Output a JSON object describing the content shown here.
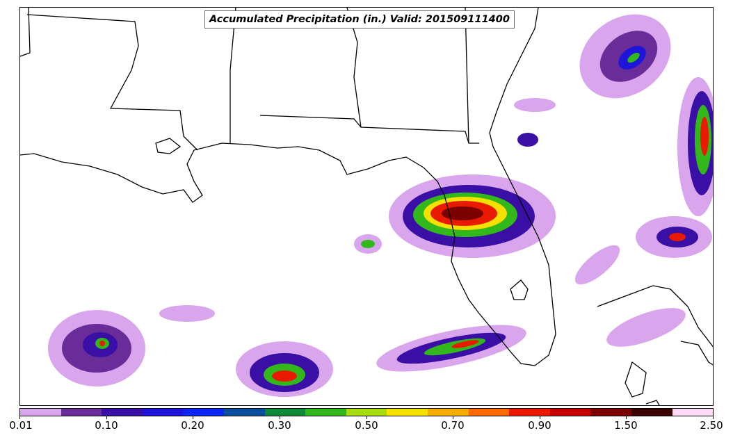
{
  "title": "Accumulated Precipitation (in.) Valid: 201509111400",
  "colorbar": {
    "colors": [
      "#d9a5ec",
      "#6a2c99",
      "#3a0fa6",
      "#1f14d9",
      "#0a26f0",
      "#0a4f9e",
      "#0c8a3a",
      "#33b81c",
      "#a8dc12",
      "#f5e000",
      "#f7ac00",
      "#ff6a00",
      "#ea1a00",
      "#c40000",
      "#7d0000",
      "#3a0000",
      "#ffd9f5"
    ],
    "ticks": [
      {
        "label": "0.01",
        "index": 0
      },
      {
        "label": "0.10",
        "index": 2
      },
      {
        "label": "0.20",
        "index": 4
      },
      {
        "label": "0.30",
        "index": 6
      },
      {
        "label": "0.50",
        "index": 8
      },
      {
        "label": "0.70",
        "index": 10
      },
      {
        "label": "0.90",
        "index": 12
      },
      {
        "label": "1.50",
        "index": 14
      },
      {
        "label": "2.50",
        "index": 16
      }
    ]
  }
}
